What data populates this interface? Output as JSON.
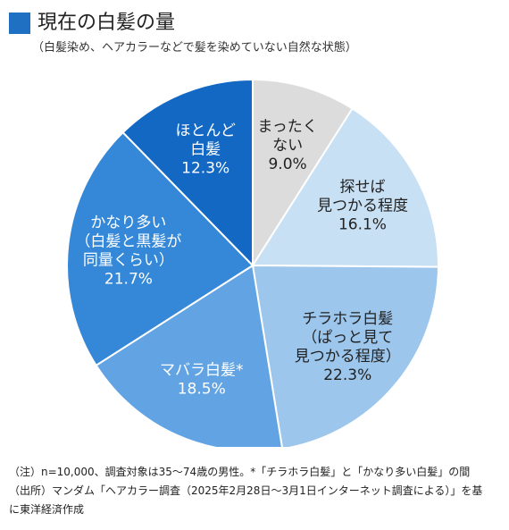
{
  "header": {
    "title": "現在の白髪の量",
    "subtitle": "（白髪染め、ヘアカラーなどで髪を染めていない自然な状態）"
  },
  "chart_data": {
    "type": "pie",
    "title": "現在の白髪の量",
    "subtitle": "（白髪染め、ヘアカラーなどで髪を染めていない自然な状態）",
    "unit": "%",
    "slices": [
      {
        "label_lines": [
          "まったく",
          "ない"
        ],
        "value": 9.0,
        "value_label": "9.0%",
        "color": "#dcdcdc",
        "text_color": "#222222"
      },
      {
        "label_lines": [
          "探せば",
          "見つかる程度"
        ],
        "value": 16.1,
        "value_label": "16.1%",
        "color": "#c8e0f4",
        "text_color": "#222222"
      },
      {
        "label_lines": [
          "チラホラ白髪",
          "（ぱっと見て",
          "見つかる程度）"
        ],
        "value": 22.3,
        "value_label": "22.3%",
        "color": "#9cc6ec",
        "text_color": "#222222"
      },
      {
        "label_lines": [
          "マバラ白髪*"
        ],
        "value": 18.5,
        "value_label": "18.5%",
        "color": "#62a4e3",
        "text_color": "#ffffff"
      },
      {
        "label_lines": [
          "かなり多い",
          "（白髪と黒髪が",
          "同量くらい）"
        ],
        "value": 21.7,
        "value_label": "21.7%",
        "color": "#3588d8",
        "text_color": "#ffffff"
      },
      {
        "label_lines": [
          "ほとんど",
          "白髪"
        ],
        "value": 12.3,
        "value_label": "12.3%",
        "color": "#1368c4",
        "text_color": "#ffffff"
      }
    ]
  },
  "notes": {
    "line1": "（注）n=10,000、調査対象は35〜74歳の男性。*「チラホラ白髪」と「かなり多い白髪」の間",
    "line2": "（出所）マンダム「ヘアカラー調査（2025年2月28日〜3月1日インターネット調査による）」を基",
    "line3": "に東洋経済作成"
  }
}
